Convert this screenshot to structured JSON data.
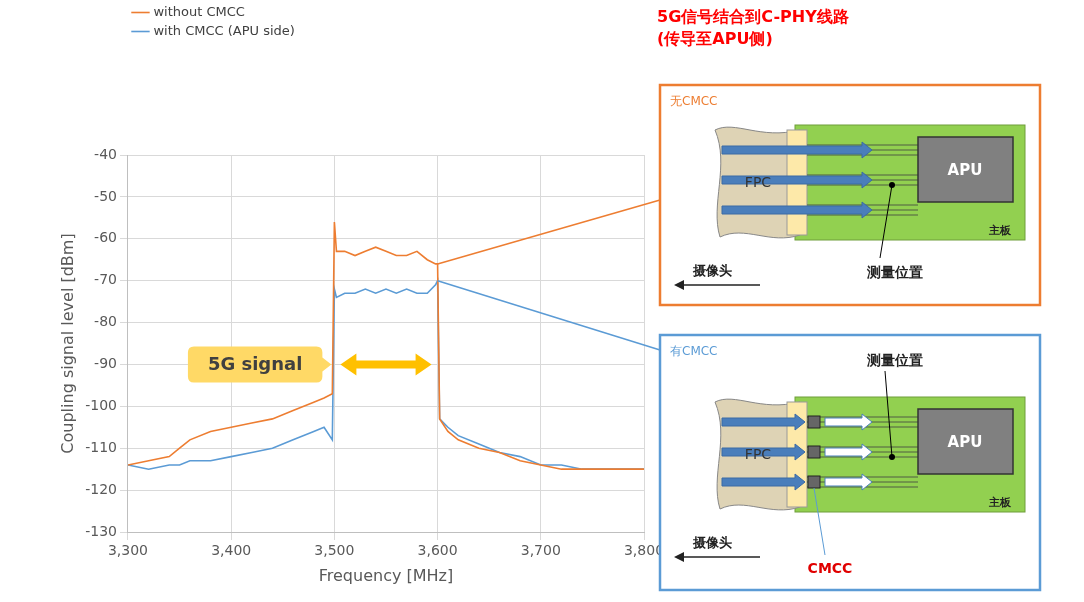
{
  "chart_data": {
    "type": "line",
    "x_label": "Frequency [MHz]",
    "y_label": "Coupling signal level [dBm]",
    "x": [
      3300,
      3320,
      3340,
      3350,
      3360,
      3380,
      3400,
      3420,
      3440,
      3460,
      3480,
      3490,
      3498,
      3500,
      3502,
      3510,
      3520,
      3530,
      3540,
      3550,
      3560,
      3570,
      3580,
      3590,
      3598,
      3600,
      3602,
      3610,
      3620,
      3640,
      3660,
      3680,
      3700,
      3720,
      3740,
      3760,
      3780,
      3800
    ],
    "series": [
      {
        "name": "without CMCC",
        "color": "#ed7d31",
        "values": [
          -114,
          -113,
          -112,
          -110,
          -108,
          -106,
          -105,
          -104,
          -103,
          -101,
          -99,
          -98,
          -97,
          -56,
          -63,
          -63,
          -64,
          -63,
          -62,
          -63,
          -64,
          -64,
          -63,
          -65,
          -66,
          -66,
          -103,
          -106,
          -108,
          -110,
          -111,
          -113,
          -114,
          -115,
          -115,
          -115,
          -115,
          -115
        ]
      },
      {
        "name": "with CMCC (APU side)",
        "color": "#5b9bd5",
        "values": [
          -114,
          -115,
          -114,
          -114,
          -113,
          -113,
          -112,
          -111,
          -110,
          -108,
          -106,
          -105,
          -108,
          -72,
          -74,
          -73,
          -73,
          -72,
          -73,
          -72,
          -73,
          -72,
          -73,
          -73,
          -71,
          -70,
          -103,
          -105,
          -107,
          -109,
          -111,
          -112,
          -114,
          -114,
          -115,
          -115,
          -115,
          -115
        ]
      }
    ],
    "xlim": [
      3300,
      3800
    ],
    "xticks": [
      3300,
      3400,
      3500,
      3600,
      3700,
      3800
    ],
    "ylim": [
      -130,
      -40
    ],
    "yticks": [
      -130,
      -120,
      -110,
      -100,
      -90,
      -80,
      -70,
      -60,
      -50,
      -40
    ],
    "grid": true,
    "legend": "upper left",
    "annotation": {
      "text": "5G signal",
      "x_range": [
        3500,
        3600
      ],
      "y": -90
    }
  },
  "diagram": {
    "title": [
      "5G信号结合到C-PHY线路",
      "(传导至APU侧)"
    ],
    "panels": [
      {
        "label": "无CMCC",
        "fpc": "FPC",
        "apu": "APU",
        "board": "主板",
        "camera": "摄像头",
        "measure": "测量位置"
      },
      {
        "label": "有CMCC",
        "fpc": "FPC",
        "apu": "APU",
        "board": "主板",
        "camera": "摄像头",
        "measure": "测量位置",
        "cmcc": "CMCC"
      }
    ]
  }
}
